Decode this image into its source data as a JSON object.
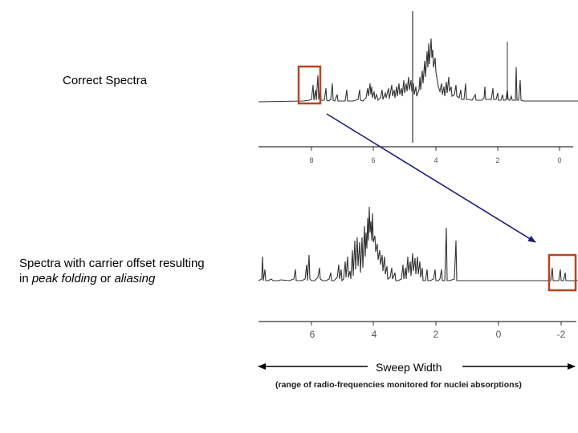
{
  "labels": {
    "correct": "Correct Spectra",
    "offset_line1": "Spectra with carrier offset resulting",
    "offset_line2_pre": "in ",
    "offset_peak_folding": "peak folding",
    "offset_mid": " or ",
    "offset_aliasing": "aliasing",
    "sweep_width": "Sweep Width",
    "range_note": "(range of radio-frequencies monitored for nuclei absorptions)"
  },
  "top_spectrum": {
    "axis_ticks": [
      "8",
      "6",
      "4",
      "2",
      "0"
    ]
  },
  "bottom_spectrum": {
    "axis_ticks": [
      "6",
      "4",
      "2",
      "0",
      "-2"
    ]
  },
  "colors": {
    "highlight_box": "#b5461f",
    "arrow": "#1c1c7a",
    "trace": "#333333"
  }
}
